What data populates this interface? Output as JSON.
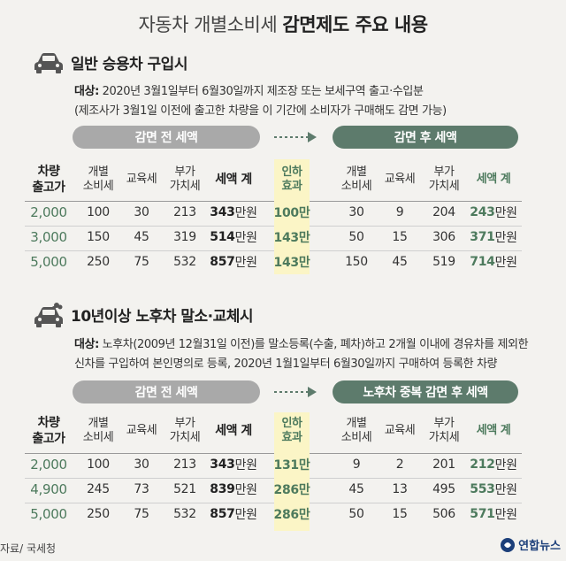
{
  "title_normal": "자동차 개별소비세",
  "title_bold": "감면제도 주요 내용",
  "section1": {
    "heading": "일반 승용차 구입시",
    "target_label": "대상:",
    "target_text": " 2020년 3월1일부터 6월30일까지 제조장 또는 보세구역 출고·수입분",
    "note": "(제조사가 3월1일 이전에 출고한 차량을 이 기간에 소비자가 구매해도 감면 가능)",
    "pill_before": "감면 전 세액",
    "pill_after": "감면 후 세액",
    "headers": {
      "row_head_1": "차량",
      "row_head_2": "출고가",
      "individual_1": "개별",
      "individual_2": "소비세",
      "education": "교육세",
      "vat_1": "부가",
      "vat_2": "가치세",
      "total": "세액 계",
      "cut_1": "인하",
      "cut_2": "효과",
      "a_individual_1": "개별",
      "a_individual_2": "소비세",
      "a_education": "교육세",
      "a_vat_1": "부가",
      "a_vat_2": "가치세",
      "a_total": "세액 계"
    },
    "rows": [
      {
        "price": "2,000",
        "ind": "100",
        "edu": "30",
        "vat": "213",
        "total_num": "343",
        "total_unit": "만원",
        "cut": "100만",
        "a_ind": "30",
        "a_edu": "9",
        "a_vat": "204",
        "a_total_num": "243",
        "a_total_unit": "만원"
      },
      {
        "price": "3,000",
        "ind": "150",
        "edu": "45",
        "vat": "319",
        "total_num": "514",
        "total_unit": "만원",
        "cut": "143만",
        "a_ind": "50",
        "a_edu": "15",
        "a_vat": "306",
        "a_total_num": "371",
        "a_total_unit": "만원"
      },
      {
        "price": "5,000",
        "ind": "250",
        "edu": "75",
        "vat": "532",
        "total_num": "857",
        "total_unit": "만원",
        "cut": "143만",
        "a_ind": "150",
        "a_edu": "45",
        "a_vat": "519",
        "a_total_num": "714",
        "a_total_unit": "만원"
      }
    ]
  },
  "section2": {
    "heading": "10년이상 노후차 말소·교체시",
    "target_label": "대상:",
    "target_text": " 노후차(2009년 12월31일 이전)를 말소등록(수출, 폐차)하고 2개월 이내에 경유차를 제외한",
    "target_text2": "신차를 구입하여 본인명의로 등록, 2020년 1월1일부터 6월30일까지 구매하여 등록한 차량",
    "pill_before": "감면 전 세액",
    "pill_after": "노후차 중복  감면 후 세액",
    "headers": {
      "row_head_1": "차량",
      "row_head_2": "출고가",
      "individual_1": "개별",
      "individual_2": "소비세",
      "education": "교육세",
      "vat_1": "부가",
      "vat_2": "가치세",
      "total": "세액 계",
      "cut_1": "인하",
      "cut_2": "효과",
      "a_individual_1": "개별",
      "a_individual_2": "소비세",
      "a_education": "교육세",
      "a_vat_1": "부가",
      "a_vat_2": "가치세",
      "a_total": "세액 계"
    },
    "rows": [
      {
        "price": "2,000",
        "ind": "100",
        "edu": "30",
        "vat": "213",
        "total_num": "343",
        "total_unit": "만원",
        "cut": "131만",
        "a_ind": "9",
        "a_edu": "2",
        "a_vat": "201",
        "a_total_num": "212",
        "a_total_unit": "만원"
      },
      {
        "price": "4,900",
        "ind": "245",
        "edu": "73",
        "vat": "521",
        "total_num": "839",
        "total_unit": "만원",
        "cut": "286만",
        "a_ind": "45",
        "a_edu": "13",
        "a_vat": "495",
        "a_total_num": "553",
        "a_total_unit": "만원"
      },
      {
        "price": "5,000",
        "ind": "250",
        "edu": "75",
        "vat": "532",
        "total_num": "857",
        "total_unit": "만원",
        "cut": "286만",
        "a_ind": "50",
        "a_edu": "15",
        "a_vat": "506",
        "a_total_num": "571",
        "a_total_unit": "만원"
      }
    ]
  },
  "source": "자료/ 국세청",
  "logo_text": "연합뉴스",
  "colors": {
    "accent_green": "#5d7b6c",
    "gray_pill": "#a9a9a9",
    "highlight": "#fbf5c6"
  }
}
